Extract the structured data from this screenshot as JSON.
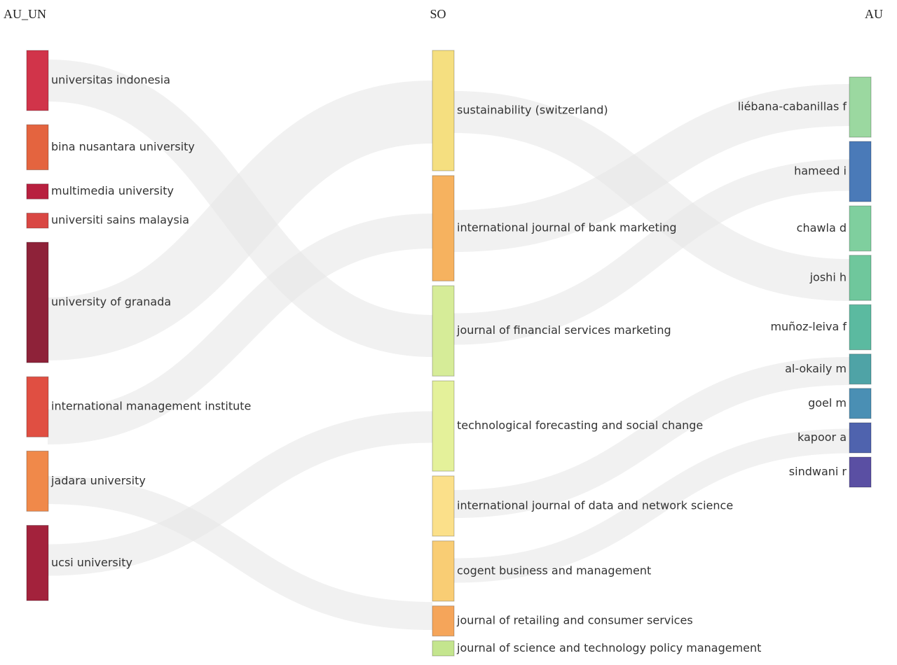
{
  "chart_data": {
    "type": "sankey",
    "columns": [
      {
        "title": "AU_UN",
        "nodes": [
          {
            "name": "universitas indonesia",
            "value": 4,
            "color": "#d1344a"
          },
          {
            "name": "bina nusantara university",
            "value": 3,
            "color": "#e4643f"
          },
          {
            "name": "multimedia university",
            "value": 1,
            "color": "#b8203f"
          },
          {
            "name": "universiti sains malaysia",
            "value": 1,
            "color": "#d94743"
          },
          {
            "name": "university of granada",
            "value": 8,
            "color": "#8e2239"
          },
          {
            "name": "international management institute",
            "value": 4,
            "color": "#e04f42"
          },
          {
            "name": "jadara university",
            "value": 4,
            "color": "#f0894a"
          },
          {
            "name": "ucsi university",
            "value": 5,
            "color": "#a3223c"
          }
        ]
      },
      {
        "title": "SO",
        "nodes": [
          {
            "name": "sustainability (switzerland)",
            "value": 8,
            "color": "#f5df80"
          },
          {
            "name": "international journal of bank marketing",
            "value": 7,
            "color": "#f6b25f"
          },
          {
            "name": "journal of financial services marketing",
            "value": 6,
            "color": "#d6ec98"
          },
          {
            "name": "technological forecasting and social change",
            "value": 6,
            "color": "#e4f19a"
          },
          {
            "name": "international journal of data and network science",
            "value": 4,
            "color": "#fbe08a"
          },
          {
            "name": "cogent business and management",
            "value": 4,
            "color": "#f9cd74"
          },
          {
            "name": "journal of retailing and consumer services",
            "value": 2,
            "color": "#f5a55a"
          },
          {
            "name": "journal of science and technology policy management",
            "value": 1,
            "color": "#c4e58e"
          }
        ]
      },
      {
        "title": "AU",
        "nodes": [
          {
            "name": "liébana-cabanillas f",
            "value": 4,
            "color": "#9bd8a0"
          },
          {
            "name": "hameed i",
            "value": 4,
            "color": "#4a7ab8"
          },
          {
            "name": "chawla d",
            "value": 3,
            "color": "#7fcf9e"
          },
          {
            "name": "joshi h",
            "value": 3,
            "color": "#6fc79c"
          },
          {
            "name": "muñoz-leiva f",
            "value": 3,
            "color": "#5bbaa0"
          },
          {
            "name": "al-okaily m",
            "value": 2,
            "color": "#4fa3a6"
          },
          {
            "name": "goel m",
            "value": 2,
            "color": "#4a8fb4"
          },
          {
            "name": "kapoor a",
            "value": 2,
            "color": "#4f63ae"
          },
          {
            "name": "sindwani r",
            "value": 2,
            "color": "#5a4fa3"
          }
        ]
      }
    ]
  }
}
